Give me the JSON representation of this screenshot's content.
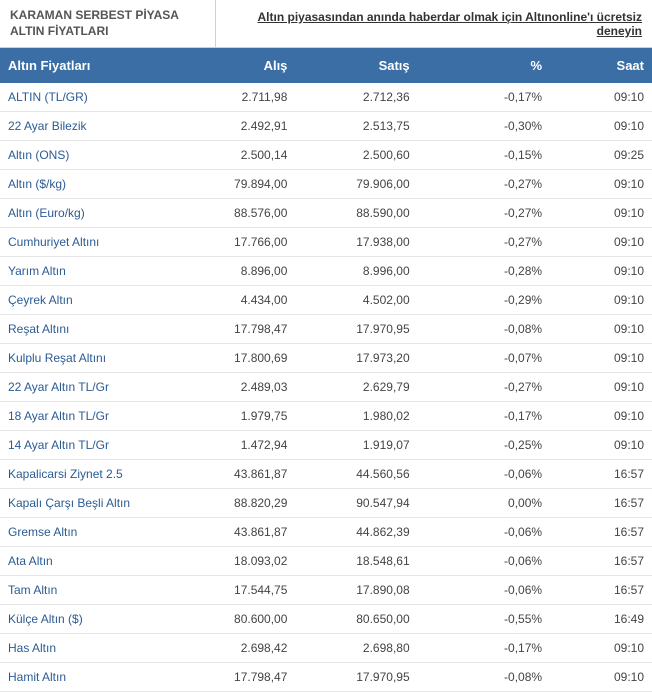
{
  "header": {
    "title": "KARAMAN SERBEST PİYASA ALTIN FİYATLARI",
    "promo": "Altın piyasasından anında haberdar olmak için Altınonline'ı ücretsiz deneyin"
  },
  "table": {
    "columns": [
      "Altın Fiyatları",
      "Alış",
      "Satış",
      "%",
      "Saat"
    ],
    "header_bg": "#3a6ea5",
    "header_fg": "#ffffff",
    "name_color": "#2b5b94",
    "rows": [
      {
        "name": "ALTIN (TL/GR)",
        "buy": "2.711,98",
        "sell": "2.712,36",
        "pct": "-0,17%",
        "time": "09:10"
      },
      {
        "name": "22 Ayar Bilezik",
        "buy": "2.492,91",
        "sell": "2.513,75",
        "pct": "-0,30%",
        "time": "09:10"
      },
      {
        "name": "Altın (ONS)",
        "buy": "2.500,14",
        "sell": "2.500,60",
        "pct": "-0,15%",
        "time": "09:25"
      },
      {
        "name": "Altın ($/kg)",
        "buy": "79.894,00",
        "sell": "79.906,00",
        "pct": "-0,27%",
        "time": "09:10"
      },
      {
        "name": "Altın (Euro/kg)",
        "buy": "88.576,00",
        "sell": "88.590,00",
        "pct": "-0,27%",
        "time": "09:10"
      },
      {
        "name": "Cumhuriyet Altını",
        "buy": "17.766,00",
        "sell": "17.938,00",
        "pct": "-0,27%",
        "time": "09:10"
      },
      {
        "name": "Yarım Altın",
        "buy": "8.896,00",
        "sell": "8.996,00",
        "pct": "-0,28%",
        "time": "09:10"
      },
      {
        "name": "Çeyrek Altın",
        "buy": "4.434,00",
        "sell": "4.502,00",
        "pct": "-0,29%",
        "time": "09:10"
      },
      {
        "name": "Reşat Altını",
        "buy": "17.798,47",
        "sell": "17.970,95",
        "pct": "-0,08%",
        "time": "09:10"
      },
      {
        "name": "Kulplu Reşat Altını",
        "buy": "17.800,69",
        "sell": "17.973,20",
        "pct": "-0,07%",
        "time": "09:10"
      },
      {
        "name": "22 Ayar Altın TL/Gr",
        "buy": "2.489,03",
        "sell": "2.629,79",
        "pct": "-0,27%",
        "time": "09:10"
      },
      {
        "name": "18 Ayar Altın TL/Gr",
        "buy": "1.979,75",
        "sell": "1.980,02",
        "pct": "-0,17%",
        "time": "09:10"
      },
      {
        "name": "14 Ayar Altın TL/Gr",
        "buy": "1.472,94",
        "sell": "1.919,07",
        "pct": "-0,25%",
        "time": "09:10"
      },
      {
        "name": "Kapalicarsi Ziynet 2.5",
        "buy": "43.861,87",
        "sell": "44.560,56",
        "pct": "-0,06%",
        "time": "16:57"
      },
      {
        "name": "Kapalı Çarşı Beşli Altın",
        "buy": "88.820,29",
        "sell": "90.547,94",
        "pct": "0,00%",
        "time": "16:57"
      },
      {
        "name": "Gremse Altın",
        "buy": "43.861,87",
        "sell": "44.862,39",
        "pct": "-0,06%",
        "time": "16:57"
      },
      {
        "name": "Ata Altın",
        "buy": "18.093,02",
        "sell": "18.548,61",
        "pct": "-0,06%",
        "time": "16:57"
      },
      {
        "name": "Tam Altın",
        "buy": "17.544,75",
        "sell": "17.890,08",
        "pct": "-0,06%",
        "time": "16:57"
      },
      {
        "name": "Külçe Altın ($)",
        "buy": "80.600,00",
        "sell": "80.650,00",
        "pct": "-0,55%",
        "time": "16:49"
      },
      {
        "name": "Has Altın",
        "buy": "2.698,42",
        "sell": "2.698,80",
        "pct": "-0,17%",
        "time": "09:10"
      },
      {
        "name": "Hamit Altın",
        "buy": "17.798,47",
        "sell": "17.970,95",
        "pct": "-0,08%",
        "time": "09:10"
      }
    ]
  }
}
